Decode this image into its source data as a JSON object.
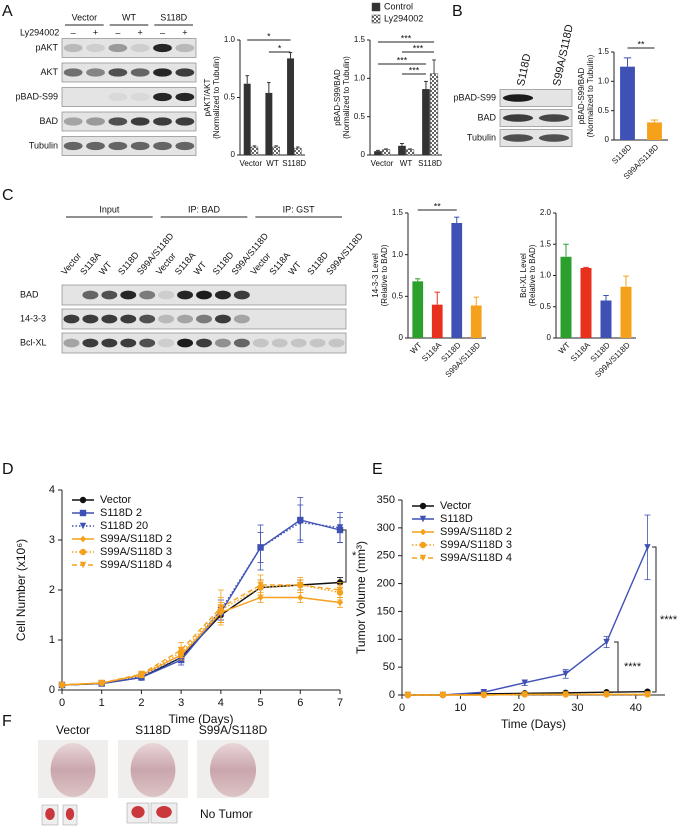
{
  "panel_letters": [
    "A",
    "B",
    "C",
    "D",
    "E",
    "F"
  ],
  "blots": [
    {
      "groups": [
        "Vector",
        "WT",
        "S118D"
      ],
      "treatment": "Ly294002",
      "signs": [
        "–",
        "+",
        "–",
        "+",
        "–",
        "+"
      ],
      "rows": [
        "pAKT",
        "AKT",
        "pBAD-S99",
        "BAD",
        "Tubulin"
      ]
    },
    {
      "lanes": [
        "S118D",
        "S99A/S118D"
      ],
      "rows": [
        "pBAD-S99",
        "BAD",
        "Tubulin"
      ]
    },
    {
      "groups": [
        "Input",
        "IP: BAD",
        "IP: GST"
      ],
      "lanes": [
        "Vector",
        "S118A",
        "WT",
        "S118D",
        "S99A/S118D"
      ],
      "rows": [
        "BAD",
        "14-3-3",
        "Bcl-XL"
      ]
    }
  ],
  "photos": {
    "labels": [
      "Vector",
      "S118D",
      "S99A/S118D"
    ],
    "note": "No Tumor"
  },
  "chart_data": [
    {
      "type": "bar",
      "ylabel": [
        "pAKT/AKT",
        "(Normalized to Tubulin)"
      ],
      "categories": [
        "Vector",
        "WT",
        "S118D"
      ],
      "series": [
        {
          "color": "#333333",
          "values": [
            0.62,
            0.54,
            0.84
          ],
          "errors": [
            0.07,
            0.09,
            0.05
          ]
        },
        {
          "color": "#888888",
          "pattern": "checkered",
          "values": [
            0.07,
            0.07,
            0.06
          ],
          "errors": [
            0.01,
            0.01,
            0.01
          ]
        }
      ],
      "ylim": [
        0,
        1.0
      ],
      "yticks": [
        0,
        0.5,
        {
          "value": 1.0,
          "label": "1.0"
        }
      ],
      "annotations": [
        "*",
        "*"
      ]
    },
    {
      "type": "bar",
      "ylabel": [
        "pBAD-S99/BAD",
        "(Normalized to Tubulin)"
      ],
      "categories": [
        "Vector",
        "WT",
        "S118D"
      ],
      "series": [
        {
          "name": "Control",
          "color": "#333333",
          "values": [
            0.05,
            0.12,
            0.86
          ],
          "errors": [
            0.01,
            0.03,
            0.1
          ]
        },
        {
          "name": "Ly294002",
          "color": "#888888",
          "pattern": "checkered",
          "values": [
            0.07,
            0.07,
            1.06
          ],
          "errors": [
            0.01,
            0.01,
            0.18
          ]
        }
      ],
      "ylim": [
        0,
        1.5
      ],
      "yticks": [
        0,
        0.5,
        {
          "value": 1.0,
          "label": "1.0"
        },
        1.5
      ],
      "legend": "top",
      "annotations": [
        "***",
        "***",
        "***",
        "***"
      ]
    },
    {
      "type": "bar",
      "ylabel": [
        "pBAD-S99/BAD",
        "(Normalized to Tubulin)"
      ],
      "categories": [
        "S118D",
        "S99A/S118D"
      ],
      "values": [
        1.25,
        0.3
      ],
      "errors": [
        0.15,
        0.04
      ],
      "colors": [
        "#3f51b5",
        "#f5a11c"
      ],
      "ylim": [
        0,
        1.5
      ],
      "yticks": [
        0,
        0.5,
        {
          "value": 1.0,
          "label": "1.0"
        },
        1.5
      ],
      "rotate_labels": true,
      "annotations": [
        "**"
      ]
    },
    {
      "type": "bar",
      "ylabel": [
        "14-3-3 Level",
        "(Relative to BAD)"
      ],
      "categories": [
        "WT",
        "S118A",
        "S118D",
        "S99A/S118D"
      ],
      "values": [
        0.68,
        0.4,
        1.38,
        0.39
      ],
      "errors": [
        0.03,
        0.15,
        0.07,
        0.1
      ],
      "colors": [
        "#2ca02c",
        "#e8301c",
        "#3f51b5",
        "#f5a11c"
      ],
      "ylim": [
        0,
        1.5
      ],
      "yticks": [
        0,
        0.5,
        {
          "value": 1.0,
          "label": "1.0"
        },
        1.5
      ],
      "rotate_labels": true,
      "annotations": [
        "**"
      ]
    },
    {
      "type": "bar",
      "ylabel": [
        "Bcl-XL Level",
        "(Relative to BAD)"
      ],
      "categories": [
        "WT",
        "S118A",
        "S118D",
        "S99A/S118D"
      ],
      "values": [
        1.3,
        1.12,
        0.6,
        0.82
      ],
      "errors": [
        0.2,
        0.01,
        0.08,
        0.17
      ],
      "colors": [
        "#2ca02c",
        "#e8301c",
        "#3f51b5",
        "#f5a11c"
      ],
      "ylim": [
        0,
        2.0
      ],
      "yticks": [
        0,
        0.5,
        {
          "value": 1.0,
          "label": "1.0"
        },
        1.5,
        {
          "value": 2.0,
          "label": "2.0"
        }
      ],
      "rotate_labels": true
    },
    {
      "type": "line",
      "xlabel": "Time (Days)",
      "ylabel": "Cell Number (x10⁶)",
      "x": [
        0,
        1,
        2,
        3,
        4,
        5,
        6,
        7
      ],
      "xlim": [
        0,
        7
      ],
      "xticks": [
        0,
        1,
        2,
        3,
        4,
        5,
        6,
        7
      ],
      "ylim": [
        0,
        4
      ],
      "yticks": [
        0,
        1,
        2,
        3,
        4
      ],
      "legend": "upper left",
      "annotations": [
        "*"
      ],
      "series": [
        {
          "name": "Vector",
          "color": "#111111",
          "marker": "circle",
          "dash": "solid",
          "values": [
            0.1,
            0.13,
            0.25,
            0.65,
            1.5,
            2.05,
            2.1,
            2.15
          ],
          "errors": [
            0.02,
            0.02,
            0.05,
            0.1,
            0.15,
            0.15,
            0.1,
            0.1
          ]
        },
        {
          "name": "S118D 2",
          "color": "#3f51b5",
          "marker": "square",
          "dash": "solid",
          "values": [
            0.1,
            0.13,
            0.25,
            0.6,
            1.55,
            2.85,
            3.4,
            3.2
          ],
          "errors": [
            0.02,
            0.02,
            0.05,
            0.1,
            0.15,
            0.45,
            0.45,
            0.25
          ]
        },
        {
          "name": "S118D 20",
          "color": "#3f51b5",
          "marker": "triangle",
          "dash": "dotted",
          "values": [
            0.1,
            0.13,
            0.28,
            0.65,
            1.6,
            2.85,
            3.35,
            3.25
          ],
          "errors": [
            0.02,
            0.02,
            0.05,
            0.1,
            0.2,
            0.3,
            0.35,
            0.3
          ]
        },
        {
          "name": "S99A/S118D 2",
          "color": "#f5a11c",
          "marker": "diamond",
          "dash": "solid",
          "values": [
            0.1,
            0.14,
            0.3,
            0.7,
            1.55,
            1.85,
            1.85,
            1.75
          ],
          "errors": [
            0.02,
            0.02,
            0.05,
            0.1,
            0.2,
            0.1,
            0.1,
            0.1
          ]
        },
        {
          "name": "S99A/S118D 3",
          "color": "#f5a11c",
          "marker": "circle",
          "dash": "dotted",
          "values": [
            0.1,
            0.14,
            0.3,
            0.75,
            1.6,
            2.05,
            2.1,
            1.95
          ],
          "errors": [
            0.02,
            0.02,
            0.05,
            0.1,
            0.25,
            0.15,
            0.1,
            0.15
          ]
        },
        {
          "name": "S99A/S118D 4",
          "color": "#f5a11c",
          "marker": "triangle",
          "dash": "dashed",
          "values": [
            0.1,
            0.14,
            0.32,
            0.8,
            1.65,
            2.1,
            2.1,
            2.0
          ],
          "errors": [
            0.02,
            0.02,
            0.05,
            0.15,
            0.35,
            0.2,
            0.15,
            0.15
          ]
        }
      ]
    },
    {
      "type": "line",
      "xlabel": "Time (Days)",
      "ylabel": "Tumor Volume (mm³)",
      "x": [
        1,
        7,
        14,
        21,
        28,
        35,
        42
      ],
      "xlim": [
        0,
        45
      ],
      "xticks": [
        0,
        10,
        20,
        30,
        40
      ],
      "ylim": [
        0,
        350
      ],
      "yticks": [
        0,
        50,
        100,
        150,
        200,
        250,
        300,
        350
      ],
      "legend": "upper left",
      "annotations": [
        "****",
        "****"
      ],
      "series": [
        {
          "name": "Vector",
          "color": "#111111",
          "marker": "circle",
          "dash": "solid",
          "values": [
            0,
            0,
            2,
            3,
            4,
            5,
            6
          ],
          "errors": [
            0,
            0,
            1,
            1,
            1,
            1,
            1
          ]
        },
        {
          "name": "S118D",
          "color": "#3f51b5",
          "marker": "triangle",
          "dash": "solid",
          "values": [
            0,
            0,
            5,
            22,
            38,
            95,
            265
          ],
          "errors": [
            0,
            0,
            2,
            5,
            8,
            10,
            58
          ]
        },
        {
          "name": "S99A/S118D 2",
          "color": "#f5a11c",
          "marker": "diamond",
          "dash": "solid",
          "values": [
            0,
            0,
            0,
            1,
            1,
            1,
            1
          ],
          "errors": [
            0,
            0,
            0,
            0,
            0,
            0,
            0
          ]
        },
        {
          "name": "S99A/S118D 3",
          "color": "#f5a11c",
          "marker": "circle",
          "dash": "dotted",
          "values": [
            0,
            0,
            0,
            1,
            1,
            1,
            1
          ],
          "errors": [
            0,
            0,
            0,
            0,
            0,
            0,
            0
          ]
        },
        {
          "name": "S99A/S118D 4",
          "color": "#f5a11c",
          "marker": "triangle",
          "dash": "dashed",
          "values": [
            0,
            0,
            0,
            1,
            1,
            1,
            1
          ],
          "errors": [
            0,
            0,
            0,
            0,
            0,
            0,
            0
          ]
        }
      ]
    }
  ]
}
